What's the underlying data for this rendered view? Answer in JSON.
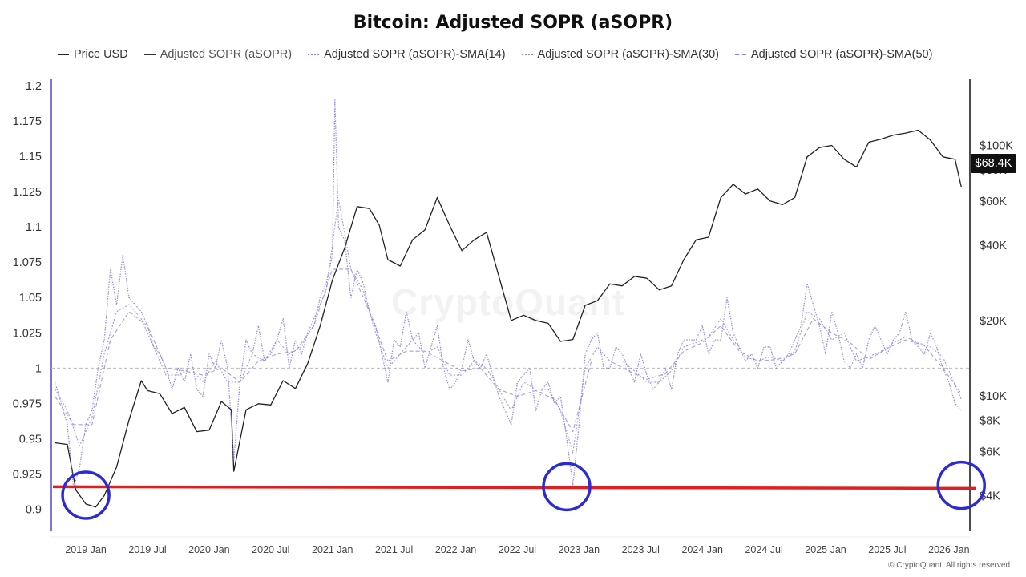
{
  "chart_data": {
    "type": "line",
    "title": "Bitcoin: Adjusted SOPR (aSOPR)",
    "legend": [
      {
        "name": "Price USD",
        "color": "#222222",
        "style": "solid",
        "struck": false
      },
      {
        "name": "Adjusted SOPR (aSOPR)",
        "color": "#333333",
        "style": "solid",
        "struck": true
      },
      {
        "name": "Adjusted SOPR (aSOPR)-SMA(14)",
        "color": "#8b84e0",
        "style": "dotted",
        "struck": false
      },
      {
        "name": "Adjusted SOPR (aSOPR)-SMA(30)",
        "color": "#8b84e0",
        "style": "dotted",
        "struck": false
      },
      {
        "name": "Adjusted SOPR (aSOPR)-SMA(50)",
        "color": "#8b84e0",
        "style": "dashed",
        "struck": false
      }
    ],
    "legend_position": "top",
    "x_ticks": [
      "2019 Jan",
      "2019 Jul",
      "2020 Jan",
      "2020 Jul",
      "2021 Jan",
      "2021 Jul",
      "2022 Jan",
      "2022 Jul",
      "2023 Jan",
      "2023 Jul",
      "2024 Jan",
      "2024 Jul",
      "2025 Jan",
      "2025 Jul",
      "2026 Jan"
    ],
    "x_range": [
      "2018-09",
      "2026-02"
    ],
    "y_left": {
      "ticks": [
        "1.2",
        "1.175",
        "1.15",
        "1.125",
        "1.1",
        "1.075",
        "1.05",
        "1.025",
        "1",
        "0.975",
        "0.95",
        "0.925",
        "0.9"
      ],
      "range": [
        0.885,
        1.205
      ]
    },
    "y_right": {
      "scale": "log",
      "ticks": [
        {
          "label": "$100K",
          "value": 100000
        },
        {
          "label": "$80K",
          "value": 80000
        },
        {
          "label": "$60K",
          "value": 60000
        },
        {
          "label": "$40K",
          "value": 40000
        },
        {
          "label": "$20K",
          "value": 20000
        },
        {
          "label": "$10K",
          "value": 10000
        },
        {
          "label": "$8K",
          "value": 8000
        },
        {
          "label": "$6K",
          "value": 6000
        },
        {
          "label": "$4K",
          "value": 4000
        }
      ]
    },
    "reference_line": {
      "value": 1,
      "style": "dashed",
      "color": "#bbbbbb"
    },
    "support_line": {
      "value": 0.916,
      "color": "#e02020"
    },
    "grid": false,
    "current_price_label": "$68.4K",
    "series": [
      {
        "name": "Price USD",
        "axis": "right",
        "color": "#222222",
        "x": [
          2018.75,
          2018.85,
          2018.92,
          2019.0,
          2019.08,
          2019.15,
          2019.25,
          2019.35,
          2019.45,
          2019.5,
          2019.6,
          2019.7,
          2019.8,
          2019.9,
          2020.0,
          2020.1,
          2020.18,
          2020.2,
          2020.3,
          2020.4,
          2020.5,
          2020.6,
          2020.7,
          2020.8,
          2020.9,
          2021.0,
          2021.1,
          2021.2,
          2021.3,
          2021.38,
          2021.45,
          2021.55,
          2021.65,
          2021.75,
          2021.85,
          2021.95,
          2022.05,
          2022.15,
          2022.25,
          2022.35,
          2022.45,
          2022.55,
          2022.65,
          2022.75,
          2022.85,
          2022.95,
          2023.05,
          2023.15,
          2023.25,
          2023.35,
          2023.45,
          2023.55,
          2023.65,
          2023.75,
          2023.85,
          2023.95,
          2024.05,
          2024.15,
          2024.25,
          2024.35,
          2024.45,
          2024.55,
          2024.65,
          2024.75,
          2024.85,
          2024.95,
          2025.05,
          2025.15,
          2025.25,
          2025.35,
          2025.45,
          2025.55,
          2025.65,
          2025.75,
          2025.85,
          2025.95,
          2026.05,
          2026.1
        ],
        "values": [
          6500,
          6400,
          4200,
          3700,
          3600,
          4000,
          5200,
          8000,
          11500,
          10500,
          10200,
          8500,
          9000,
          7200,
          7300,
          9500,
          8800,
          5000,
          8800,
          9300,
          9200,
          11500,
          10700,
          13500,
          19000,
          29000,
          39000,
          57000,
          56000,
          48000,
          35000,
          33000,
          42000,
          46000,
          62000,
          48000,
          38000,
          42000,
          45000,
          30000,
          20000,
          21000,
          20000,
          19500,
          16500,
          16800,
          23000,
          24000,
          28000,
          27500,
          30000,
          29500,
          26500,
          27500,
          35000,
          42000,
          43000,
          62000,
          70000,
          64000,
          67000,
          60000,
          58000,
          62000,
          90000,
          98000,
          100000,
          88000,
          82000,
          103000,
          106000,
          110000,
          112000,
          115000,
          105000,
          90000,
          88000,
          68400
        ]
      },
      {
        "name": "Adjusted SOPR (aSOPR)-SMA(14)",
        "axis": "left",
        "color": "#8b84e0",
        "x": [
          2018.75,
          2018.8,
          2018.85,
          2018.9,
          2018.95,
          2019.0,
          2019.05,
          2019.1,
          2019.15,
          2019.2,
          2019.25,
          2019.3,
          2019.35,
          2019.4,
          2019.45,
          2019.5,
          2019.55,
          2019.6,
          2019.65,
          2019.7,
          2019.75,
          2019.8,
          2019.85,
          2019.9,
          2019.95,
          2020.0,
          2020.05,
          2020.1,
          2020.15,
          2020.2,
          2020.25,
          2020.3,
          2020.35,
          2020.4,
          2020.45,
          2020.5,
          2020.55,
          2020.6,
          2020.65,
          2020.7,
          2020.75,
          2020.8,
          2020.85,
          2020.9,
          2020.95,
          2021.0,
          2021.02,
          2021.05,
          2021.1,
          2021.15,
          2021.2,
          2021.25,
          2021.3,
          2021.35,
          2021.4,
          2021.45,
          2021.5,
          2021.55,
          2021.6,
          2021.65,
          2021.7,
          2021.75,
          2021.8,
          2021.85,
          2021.9,
          2021.95,
          2022.0,
          2022.05,
          2022.1,
          2022.15,
          2022.2,
          2022.25,
          2022.3,
          2022.35,
          2022.4,
          2022.45,
          2022.5,
          2022.55,
          2022.6,
          2022.65,
          2022.7,
          2022.75,
          2022.8,
          2022.85,
          2022.9,
          2022.95,
          2023.0,
          2023.05,
          2023.1,
          2023.15,
          2023.2,
          2023.25,
          2023.3,
          2023.35,
          2023.4,
          2023.45,
          2023.5,
          2023.55,
          2023.6,
          2023.65,
          2023.7,
          2023.75,
          2023.8,
          2023.85,
          2023.9,
          2023.95,
          2024.0,
          2024.05,
          2024.1,
          2024.15,
          2024.2,
          2024.25,
          2024.3,
          2024.35,
          2024.4,
          2024.45,
          2024.5,
          2024.55,
          2024.6,
          2024.65,
          2024.7,
          2024.75,
          2024.8,
          2024.85,
          2024.9,
          2024.95,
          2025.0,
          2025.05,
          2025.1,
          2025.15,
          2025.2,
          2025.25,
          2025.3,
          2025.35,
          2025.4,
          2025.45,
          2025.5,
          2025.55,
          2025.6,
          2025.65,
          2025.7,
          2025.75,
          2025.8,
          2025.85,
          2025.9,
          2025.95,
          2026.0,
          2026.05,
          2026.1
        ],
        "values": [
          0.99,
          0.975,
          0.96,
          0.915,
          0.93,
          0.96,
          0.97,
          1.0,
          1.02,
          1.07,
          1.045,
          1.08,
          1.05,
          1.045,
          1.04,
          1.03,
          1.015,
          1.01,
          1.0,
          0.985,
          1.0,
          0.99,
          1.01,
          0.985,
          0.98,
          1.01,
          1.0,
          1.02,
          1.0,
          0.935,
          0.99,
          1.02,
          1.01,
          1.03,
          1.005,
          1.01,
          1.02,
          1.035,
          1.0,
          1.02,
          1.01,
          1.025,
          1.03,
          1.05,
          1.06,
          1.08,
          1.19,
          1.1,
          1.09,
          1.05,
          1.07,
          1.06,
          1.04,
          1.03,
          1.01,
          0.99,
          1.02,
          1.015,
          1.04,
          1.02,
          1.025,
          1.0,
          1.015,
          1.03,
          1.0,
          0.985,
          0.99,
          1.0,
          1.02,
          1.005,
          1.0,
          1.01,
          0.995,
          0.98,
          0.97,
          0.96,
          0.99,
          0.995,
          1.0,
          0.97,
          0.985,
          0.99,
          0.975,
          0.98,
          0.95,
          0.917,
          0.96,
          1.01,
          1.02,
          1.025,
          1.0,
          1.0,
          1.015,
          1.01,
          1.0,
          0.99,
          1.01,
          0.995,
          0.985,
          0.99,
          1.0,
          0.985,
          1.01,
          1.02,
          1.02,
          1.02,
          1.03,
          1.01,
          1.02,
          1.02,
          1.05,
          1.025,
          1.015,
          1.005,
          1.01,
          1.0,
          1.015,
          1.015,
          1.0,
          1.005,
          1.01,
          1.02,
          1.03,
          1.06,
          1.045,
          1.03,
          1.01,
          1.04,
          1.025,
          1.005,
          1.0,
          1.01,
          1.0,
          1.02,
          1.03,
          1.02,
          1.01,
          1.02,
          1.025,
          1.04,
          1.02,
          1.015,
          1.01,
          1.025,
          1.015,
          1.0,
          0.99,
          0.975,
          0.97
        ]
      },
      {
        "name": "Adjusted SOPR (aSOPR)-SMA(30)",
        "axis": "left",
        "color": "#8b84e0",
        "x": [
          2018.75,
          2018.85,
          2018.95,
          2019.05,
          2019.15,
          2019.25,
          2019.35,
          2019.45,
          2019.55,
          2019.65,
          2019.75,
          2019.85,
          2019.95,
          2020.05,
          2020.15,
          2020.25,
          2020.35,
          2020.45,
          2020.55,
          2020.65,
          2020.75,
          2020.85,
          2020.95,
          2021.05,
          2021.15,
          2021.25,
          2021.35,
          2021.45,
          2021.55,
          2021.65,
          2021.75,
          2021.85,
          2021.95,
          2022.05,
          2022.15,
          2022.25,
          2022.35,
          2022.45,
          2022.55,
          2022.65,
          2022.75,
          2022.85,
          2022.95,
          2023.05,
          2023.15,
          2023.25,
          2023.35,
          2023.45,
          2023.55,
          2023.65,
          2023.75,
          2023.85,
          2023.95,
          2024.05,
          2024.15,
          2024.25,
          2024.35,
          2024.45,
          2024.55,
          2024.65,
          2024.75,
          2024.85,
          2024.95,
          2025.05,
          2025.15,
          2025.25,
          2025.35,
          2025.45,
          2025.55,
          2025.65,
          2025.75,
          2025.85,
          2025.95,
          2026.05,
          2026.1
        ],
        "values": [
          0.985,
          0.97,
          0.945,
          0.965,
          1.01,
          1.04,
          1.045,
          1.035,
          1.015,
          0.995,
          0.995,
          1.0,
          0.99,
          1.005,
          0.99,
          0.99,
          1.01,
          1.005,
          1.02,
          1.01,
          1.015,
          1.035,
          1.055,
          1.12,
          1.07,
          1.055,
          1.025,
          1.0,
          1.01,
          1.02,
          1.01,
          1.015,
          0.995,
          0.995,
          1.005,
          1.0,
          0.985,
          0.97,
          0.99,
          0.985,
          0.985,
          0.97,
          0.94,
          1.0,
          1.015,
          1.005,
          1.005,
          0.998,
          0.99,
          0.99,
          0.998,
          1.015,
          1.018,
          1.022,
          1.035,
          1.02,
          1.008,
          1.005,
          1.008,
          1.005,
          1.012,
          1.04,
          1.035,
          1.02,
          1.025,
          1.005,
          1.008,
          1.012,
          1.018,
          1.022,
          1.018,
          1.015,
          1.008,
          0.988,
          0.978
        ]
      },
      {
        "name": "Adjusted SOPR (aSOPR)-SMA(50)",
        "axis": "left",
        "color": "#8b84e0",
        "x": [
          2018.75,
          2018.9,
          2019.05,
          2019.2,
          2019.35,
          2019.5,
          2019.65,
          2019.8,
          2019.95,
          2020.1,
          2020.25,
          2020.4,
          2020.55,
          2020.7,
          2020.85,
          2021.0,
          2021.15,
          2021.3,
          2021.45,
          2021.6,
          2021.75,
          2021.9,
          2022.05,
          2022.2,
          2022.35,
          2022.5,
          2022.65,
          2022.8,
          2022.95,
          2023.1,
          2023.25,
          2023.4,
          2023.55,
          2023.7,
          2023.85,
          2024.0,
          2024.15,
          2024.3,
          2024.45,
          2024.6,
          2024.75,
          2024.9,
          2025.05,
          2025.2,
          2025.35,
          2025.5,
          2025.65,
          2025.8,
          2025.95,
          2026.1
        ],
        "values": [
          0.98,
          0.96,
          0.96,
          1.02,
          1.04,
          1.03,
          1.0,
          0.998,
          0.995,
          1.0,
          0.99,
          1.005,
          1.01,
          1.012,
          1.03,
          1.07,
          1.07,
          1.04,
          1.005,
          1.012,
          1.012,
          1.005,
          0.998,
          1.0,
          0.985,
          0.98,
          0.984,
          0.978,
          0.955,
          1.005,
          1.005,
          0.998,
          0.992,
          0.996,
          1.012,
          1.018,
          1.03,
          1.012,
          1.005,
          1.006,
          1.01,
          1.035,
          1.025,
          1.018,
          1.006,
          1.014,
          1.02,
          1.016,
          1.0,
          0.982
        ]
      }
    ],
    "highlight_circles": [
      {
        "x": 2019.0,
        "y": 0.91
      },
      {
        "x": 2022.9,
        "y": 0.916
      },
      {
        "x": 2026.1,
        "y": 0.917
      }
    ]
  },
  "credit": "© CryptoQuant. All rights reserved",
  "watermark": "CryptoQuant"
}
